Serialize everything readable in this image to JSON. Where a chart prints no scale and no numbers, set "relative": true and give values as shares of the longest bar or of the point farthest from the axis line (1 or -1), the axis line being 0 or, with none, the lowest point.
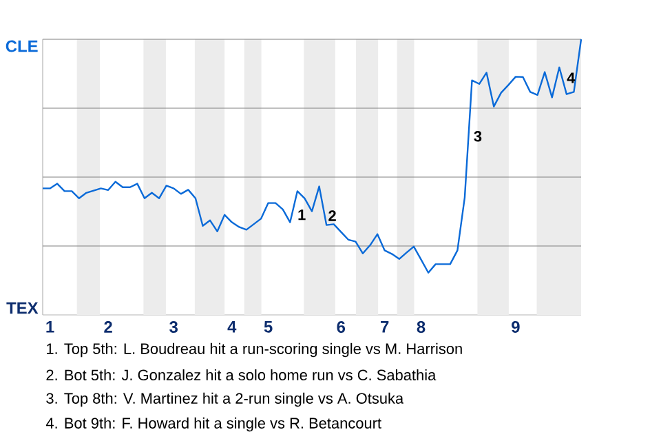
{
  "chart_data": {
    "type": "line",
    "relative": true,
    "categories": [
      null,
      "1",
      null,
      null,
      null,
      null,
      null,
      null,
      null,
      "2",
      null,
      null,
      null,
      null,
      null,
      null,
      null,
      null,
      "3",
      null,
      null,
      null,
      null,
      null,
      null,
      null,
      "4",
      null,
      null,
      null,
      null,
      "5",
      null,
      null,
      null,
      null,
      null,
      null,
      null,
      null,
      null,
      "6",
      null,
      null,
      null,
      null,
      null,
      "7",
      null,
      null,
      null,
      null,
      "8",
      null,
      null,
      null,
      null,
      null,
      null,
      null,
      null,
      null,
      null,
      null,
      null,
      "9",
      null,
      null,
      null,
      null,
      null,
      null,
      null,
      null,
      null
    ],
    "series": [
      {
        "color": "#0a6ad8",
        "values": [
          0.459,
          0.459,
          0.476,
          0.449,
          0.449,
          0.423,
          0.443,
          0.451,
          0.459,
          0.453,
          0.483,
          0.463,
          0.463,
          0.476,
          0.423,
          0.443,
          0.423,
          0.469,
          0.459,
          0.439,
          0.454,
          0.423,
          0.323,
          0.343,
          0.303,
          0.363,
          0.336,
          0.319,
          0.309,
          0.329,
          0.349,
          0.406,
          0.406,
          0.383,
          0.336,
          0.449,
          0.423,
          0.376,
          0.466,
          0.326,
          0.329,
          0.301,
          0.273,
          0.266,
          0.223,
          0.253,
          0.293,
          0.234,
          0.221,
          0.203,
          0.226,
          0.248,
          0.201,
          0.153,
          0.184,
          0.184,
          0.184,
          0.234,
          0.426,
          0.851,
          0.838,
          0.879,
          0.756,
          0.806,
          0.834,
          0.864,
          0.863,
          0.809,
          0.798,
          0.881,
          0.789,
          0.898,
          0.801,
          0.809,
          1
        ]
      }
    ],
    "grid": "y",
    "marker": "none",
    "line_style": "solid",
    "annotations": [
      "CLE",
      "TEX",
      "1",
      "2",
      "3",
      "4",
      "1. Top 5th: L. Boudreau hit a run-scoring single vs M. Harrison",
      "2. Bot 5th: J. Gonzalez hit a solo home run vs C. Sabathia",
      "3. Top 8th: V. Martinez hit a 2-run single vs A. Otsuka",
      "4. Bot 9th: F. Howard hit a single vs R. Betancourt"
    ]
  }
}
